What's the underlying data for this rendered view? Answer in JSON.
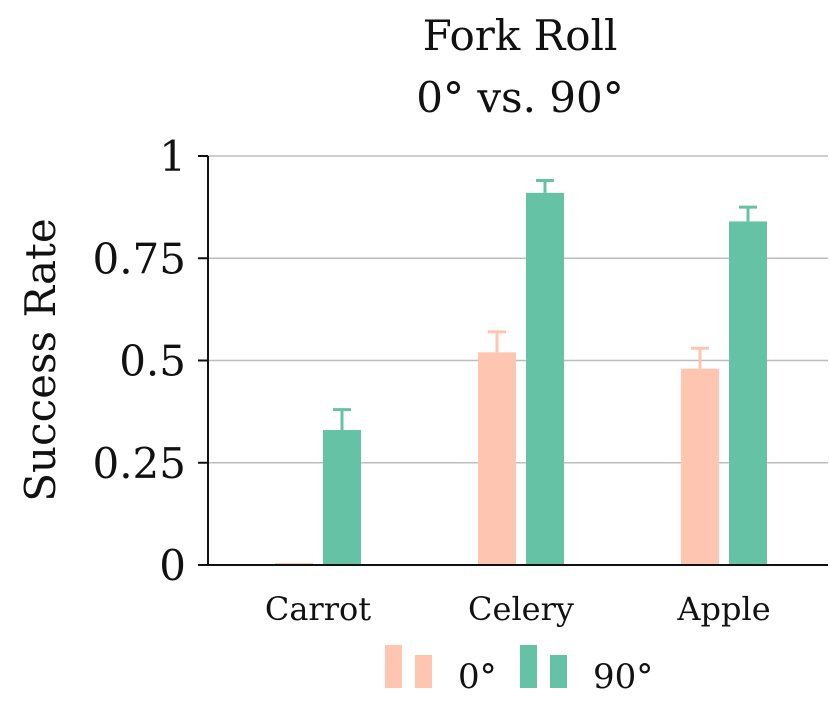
{
  "chart_data": {
    "type": "bar",
    "title": "Fork Roll",
    "subtitle": "0° vs. 90°",
    "ylabel": "Success Rate",
    "xlabel": "",
    "ylim": [
      0,
      1
    ],
    "yticks": [
      0,
      0.25,
      0.5,
      0.75,
      1
    ],
    "ytick_labels": [
      "0",
      "0.25",
      "0.5",
      "0.75",
      "1"
    ],
    "grid": true,
    "legend_position": "bottom",
    "categories": [
      "Carrot",
      "Celery",
      "Apple"
    ],
    "series": [
      {
        "name": "0°",
        "color": "#fec5b0",
        "values": [
          0.0,
          0.52,
          0.48
        ],
        "errors": [
          0.0,
          0.05,
          0.05
        ]
      },
      {
        "name": "90°",
        "color": "#66c2a5",
        "values": [
          0.33,
          0.91,
          0.84
        ],
        "errors": [
          0.05,
          0.03,
          0.035
        ]
      }
    ]
  }
}
